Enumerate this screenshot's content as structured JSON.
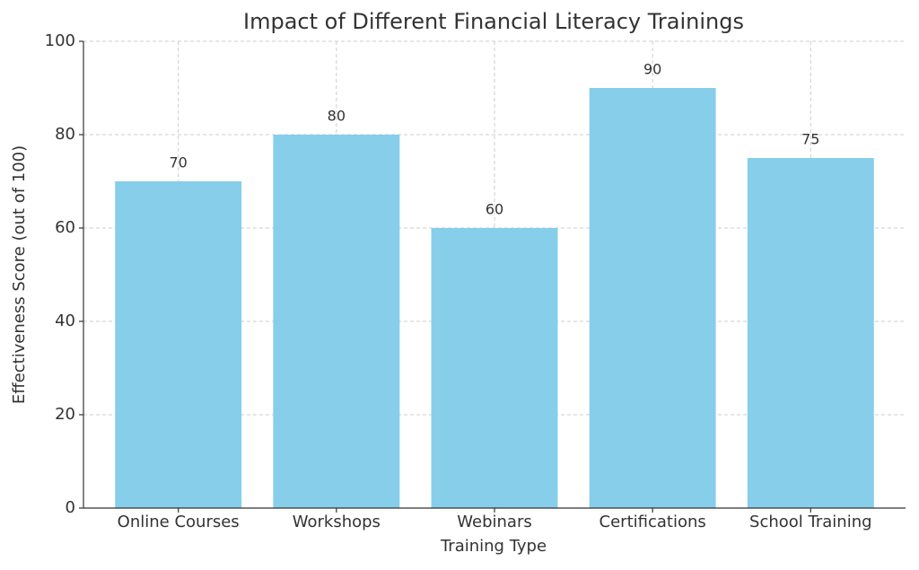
{
  "chart_data": {
    "type": "bar",
    "title": "Impact of Different Financial Literacy Trainings",
    "x_label": "Training Type",
    "y_label": "Effectiveness Score (out of 100)",
    "categories": [
      "Online Courses",
      "Workshops",
      "Webinars",
      "Certifications",
      "School Training"
    ],
    "values": [
      70,
      80,
      60,
      90,
      75
    ],
    "color": "#87ceeb",
    "ylim": [
      0,
      100
    ],
    "yticks": [
      0,
      20,
      40,
      60,
      80,
      100
    ],
    "grid": true
  }
}
